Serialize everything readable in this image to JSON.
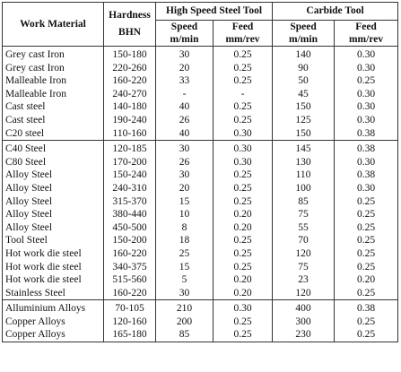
{
  "header": {
    "work_material": "Work Material",
    "hardness_line1": "Hardness",
    "hardness_line2": "BHN",
    "hss_tool": "High Speed Steel Tool",
    "carbide_tool": "Carbide Tool",
    "speed": "Speed",
    "feed": "Feed",
    "speed_unit": "m/min",
    "feed_unit": "mm/rev"
  },
  "groups": [
    {
      "rows": [
        {
          "material": "Grey cast Iron",
          "hardness": "150-180",
          "hss_speed": "30",
          "hss_feed": "0.25",
          "carb_speed": "140",
          "carb_feed": "0.30"
        },
        {
          "material": "Grey cast Iron",
          "hardness": "220-260",
          "hss_speed": "20",
          "hss_feed": "0.25",
          "carb_speed": "90",
          "carb_feed": "0.30"
        },
        {
          "material": "Malleable Iron",
          "hardness": "160-220",
          "hss_speed": "33",
          "hss_feed": "0.25",
          "carb_speed": "50",
          "carb_feed": "0.25"
        },
        {
          "material": "Malleable Iron",
          "hardness": "240-270",
          "hss_speed": "-",
          "hss_feed": "-",
          "carb_speed": "45",
          "carb_feed": "0.30"
        },
        {
          "material": "Cast steel",
          "hardness": "140-180",
          "hss_speed": "40",
          "hss_feed": "0.25",
          "carb_speed": "150",
          "carb_feed": "0.30"
        },
        {
          "material": "Cast steel",
          "hardness": "190-240",
          "hss_speed": "26",
          "hss_feed": "0.25",
          "carb_speed": "125",
          "carb_feed": "0.30"
        },
        {
          "material": "C20 steel",
          "hardness": "110-160",
          "hss_speed": "40",
          "hss_feed": "0.30",
          "carb_speed": "150",
          "carb_feed": "0.38"
        }
      ]
    },
    {
      "rows": [
        {
          "material": "C40 Steel",
          "hardness": "120-185",
          "hss_speed": "30",
          "hss_feed": "0.30",
          "carb_speed": "145",
          "carb_feed": "0.38"
        },
        {
          "material": "C80 Steel",
          "hardness": "170-200",
          "hss_speed": "26",
          "hss_feed": "0.30",
          "carb_speed": "130",
          "carb_feed": "0.30"
        },
        {
          "material": "Alloy Steel",
          "hardness": "150-240",
          "hss_speed": "30",
          "hss_feed": "0.25",
          "carb_speed": "110",
          "carb_feed": "0.38"
        },
        {
          "material": "Alloy Steel",
          "hardness": "240-310",
          "hss_speed": "20",
          "hss_feed": "0.25",
          "carb_speed": "100",
          "carb_feed": "0.30"
        },
        {
          "material": "Alloy Steel",
          "hardness": "315-370",
          "hss_speed": "15",
          "hss_feed": "0.25",
          "carb_speed": "85",
          "carb_feed": "0.25"
        },
        {
          "material": "Alloy Steel",
          "hardness": "380-440",
          "hss_speed": "10",
          "hss_feed": "0.20",
          "carb_speed": "75",
          "carb_feed": "0.25"
        },
        {
          "material": "Alloy Steel",
          "hardness": "450-500",
          "hss_speed": "8",
          "hss_feed": "0.20",
          "carb_speed": "55",
          "carb_feed": "0.25"
        },
        {
          "material": "Tool Steel",
          "hardness": "150-200",
          "hss_speed": "18",
          "hss_feed": "0.25",
          "carb_speed": "70",
          "carb_feed": "0.25"
        },
        {
          "material": "Hot work die steel",
          "hardness": "160-220",
          "hss_speed": "25",
          "hss_feed": "0.25",
          "carb_speed": "120",
          "carb_feed": "0.25"
        },
        {
          "material": "Hot work die steel",
          "hardness": "340-375",
          "hss_speed": "15",
          "hss_feed": "0.25",
          "carb_speed": "75",
          "carb_feed": "0.25"
        },
        {
          "material": "Hot work die steel",
          "hardness": "515-560",
          "hss_speed": "5",
          "hss_feed": "0.20",
          "carb_speed": "23",
          "carb_feed": "0.20"
        },
        {
          "material": "Stainless Steel",
          "hardness": "160-220",
          "hss_speed": "30",
          "hss_feed": "0.20",
          "carb_speed": "120",
          "carb_feed": "0.25"
        }
      ]
    },
    {
      "rows": [
        {
          "material": "Alluminium Alloys",
          "hardness": "70-105",
          "hss_speed": "210",
          "hss_feed": "0.30",
          "carb_speed": "400",
          "carb_feed": "0.38"
        },
        {
          "material": "Copper Alloys",
          "hardness": "120-160",
          "hss_speed": "200",
          "hss_feed": "0.25",
          "carb_speed": "300",
          "carb_feed": "0.25"
        },
        {
          "material": "Copper Alloys",
          "hardness": "165-180",
          "hss_speed": "85",
          "hss_feed": "0.25",
          "carb_speed": "230",
          "carb_feed": "0.25"
        }
      ]
    }
  ]
}
